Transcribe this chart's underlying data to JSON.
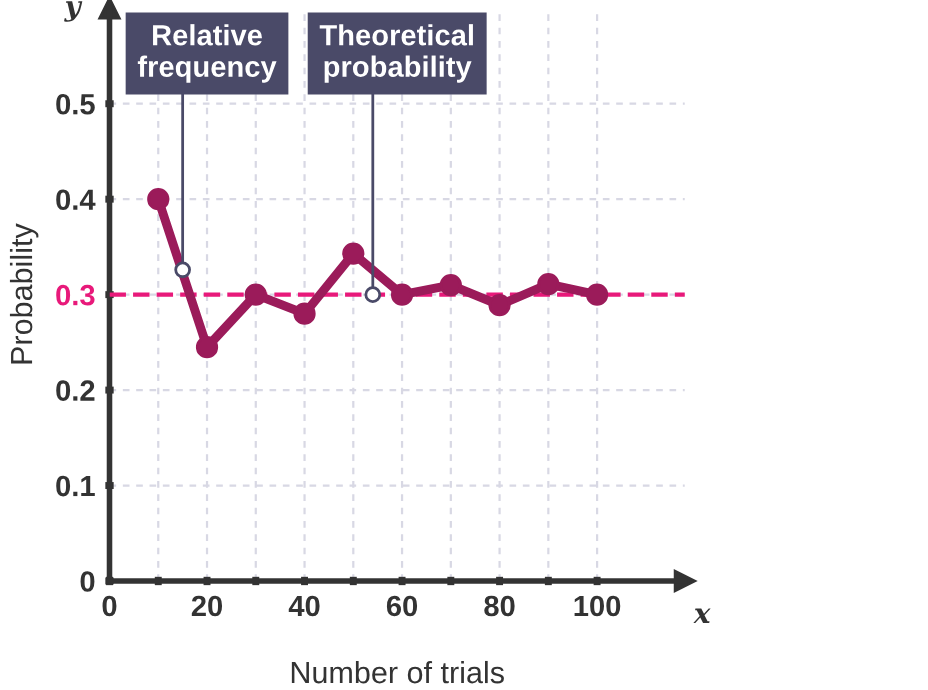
{
  "chart_data": {
    "type": "line",
    "xlabel": "Number of trials",
    "ylabel": "Probability",
    "x": [
      10,
      20,
      30,
      40,
      50,
      60,
      70,
      80,
      90,
      100
    ],
    "series": [
      {
        "color": "#9b1b5a",
        "values": [
          0.4,
          0.245,
          0.3,
          0.28,
          0.343,
          0.3,
          0.31,
          0.289,
          0.311,
          0.3
        ]
      }
    ],
    "marker": "circle",
    "line_style": "solid",
    "xlim": [
      0,
      118
    ],
    "ylim": [
      0,
      0.6
    ],
    "xticks": [
      0,
      {
        "value": 10,
        "label": null
      },
      20,
      {
        "value": 30,
        "label": null
      },
      40,
      {
        "value": 50,
        "label": null
      },
      60,
      {
        "value": 70,
        "label": null
      },
      80,
      {
        "value": 90,
        "label": null
      },
      100
    ],
    "yticks": [
      0,
      0.1,
      0.2,
      0.3,
      0.4,
      0.5
    ],
    "grid": true,
    "ref_lines": [
      {
        "axis": "y",
        "value": 0.3,
        "color": "#e8197a",
        "line_style": "dashed"
      }
    ],
    "annotations": [
      {
        "text": "Relative\nfrequency",
        "x": 15,
        "y": 0.326
      },
      {
        "text": "Theoretical\nprobability",
        "x": 54,
        "y": 0.3
      },
      "y",
      "x"
    ]
  }
}
